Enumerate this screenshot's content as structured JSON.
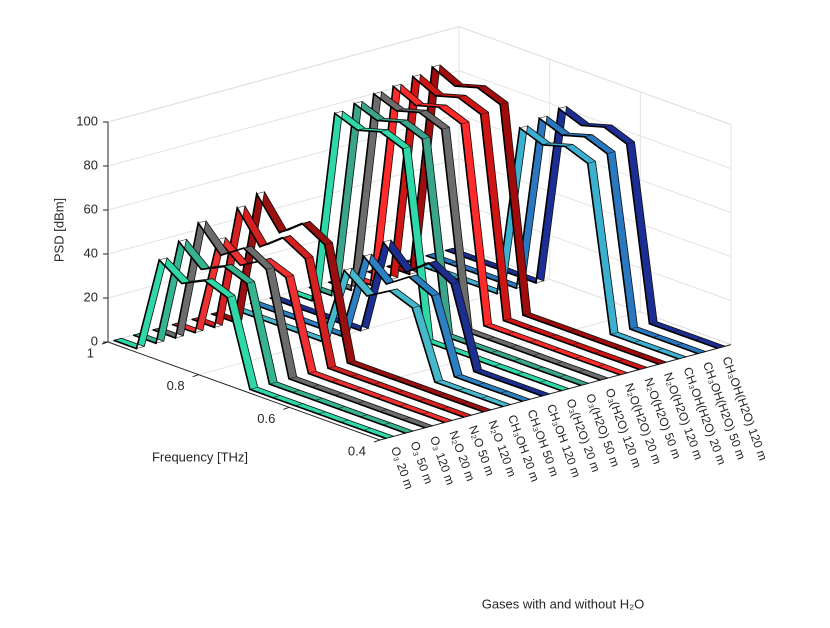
{
  "chart_data": {
    "type": "ribbon3d",
    "ylabel": "Frequency [THz]",
    "zlabel": "PSD [dBm]",
    "xlabel": "Gases with and without H₂O",
    "categories": [
      "O₃ 20 m",
      "O₃ 50 m",
      "O₃ 120 m",
      "N₂O 20 m",
      "N₂O 50 m",
      "N₂O 120 m",
      "CH₃OH 20 m",
      "CH₃OH 50 m",
      "CH₃OH 120 m",
      "O₃(H2O) 20 m",
      "O₃(H2O) 50 m",
      "O₃(H2O) 120 m",
      "N₂O(H2O) 20 m",
      "N₂O(H2O) 50 m",
      "N₂O(H2O) 120 m",
      "CH₃OH(H2O) 20 m",
      "CH₃OH(H2O) 50 m",
      "CH₃OH(H2O) 120 m"
    ],
    "x": [
      0.4,
      0.45,
      0.5,
      0.55,
      0.6,
      0.65,
      0.7,
      0.75,
      0.8,
      0.85,
      0.9,
      0.95,
      1.0
    ],
    "series": [
      {
        "color": "#2fd8a8",
        "values": [
          0,
          0,
          0,
          0,
          0,
          0,
          0,
          38,
          42,
          37,
          44,
          0,
          0
        ]
      },
      {
        "color": "#35b48f",
        "values": [
          0,
          0,
          0,
          0,
          0,
          0,
          0,
          42,
          46,
          41,
          50,
          0,
          0
        ]
      },
      {
        "color": "#6c6c6c",
        "values": [
          0,
          0,
          0,
          0,
          0,
          0,
          0,
          46,
          52,
          45,
          56,
          0,
          0
        ]
      },
      {
        "color": "#f03030",
        "values": [
          0,
          0,
          0,
          0,
          0,
          0,
          0,
          40,
          44,
          38,
          46,
          0,
          0
        ]
      },
      {
        "color": "#d42020",
        "values": [
          0,
          0,
          0,
          0,
          0,
          0,
          0,
          46,
          52,
          44,
          58,
          0,
          0
        ]
      },
      {
        "color": "#9a1010",
        "values": [
          0,
          0,
          0,
          0,
          0,
          0,
          0,
          50,
          56,
          48,
          62,
          0,
          0
        ]
      },
      {
        "color": "#45b8cc",
        "values": [
          0,
          0,
          0,
          0,
          30,
          34,
          28,
          36,
          0,
          0,
          0,
          0,
          0
        ]
      },
      {
        "color": "#2c7fc0",
        "values": [
          0,
          0,
          0,
          0,
          33,
          38,
          31,
          40,
          0,
          0,
          0,
          0,
          0
        ]
      },
      {
        "color": "#1c2f90",
        "values": [
          0,
          0,
          0,
          0,
          36,
          42,
          34,
          44,
          0,
          0,
          0,
          0,
          0
        ]
      },
      {
        "color": "#2fd8a8",
        "values": [
          0,
          0,
          0,
          0,
          0,
          0,
          0,
          84,
          88,
          85,
          89,
          0,
          0
        ]
      },
      {
        "color": "#3aa58a",
        "values": [
          0,
          0,
          0,
          0,
          0,
          0,
          0,
          86,
          90,
          87,
          91,
          0,
          0
        ]
      },
      {
        "color": "#6c6c6c",
        "values": [
          0,
          0,
          0,
          0,
          0,
          0,
          0,
          88,
          92,
          89,
          93,
          0,
          0
        ]
      },
      {
        "color": "#ff2a2a",
        "values": [
          0,
          0,
          0,
          0,
          0,
          0,
          0,
          88,
          92,
          89,
          94,
          0,
          0
        ]
      },
      {
        "color": "#d01515",
        "values": [
          0,
          0,
          0,
          0,
          0,
          0,
          0,
          90,
          94,
          91,
          96,
          0,
          0
        ]
      },
      {
        "color": "#a00c0c",
        "values": [
          0,
          0,
          0,
          0,
          0,
          0,
          0,
          92,
          96,
          93,
          98,
          0,
          0
        ]
      },
      {
        "color": "#3bb0d0",
        "values": [
          0,
          0,
          0,
          0,
          74,
          78,
          75,
          79,
          0,
          0,
          0,
          0,
          0
        ]
      },
      {
        "color": "#2a78c0",
        "values": [
          0,
          0,
          0,
          0,
          76,
          80,
          77,
          81,
          0,
          0,
          0,
          0,
          0
        ]
      },
      {
        "color": "#1c2e94",
        "values": [
          0,
          0,
          0,
          0,
          78,
          82,
          79,
          83,
          0,
          0,
          0,
          0,
          0
        ]
      }
    ],
    "ylim": [
      0.4,
      1.0
    ],
    "yticks": [
      0.4,
      0.6,
      0.8,
      1
    ],
    "zlim": [
      0,
      100
    ],
    "zticks": [
      0,
      20,
      40,
      60,
      80,
      100
    ],
    "grid": true
  }
}
